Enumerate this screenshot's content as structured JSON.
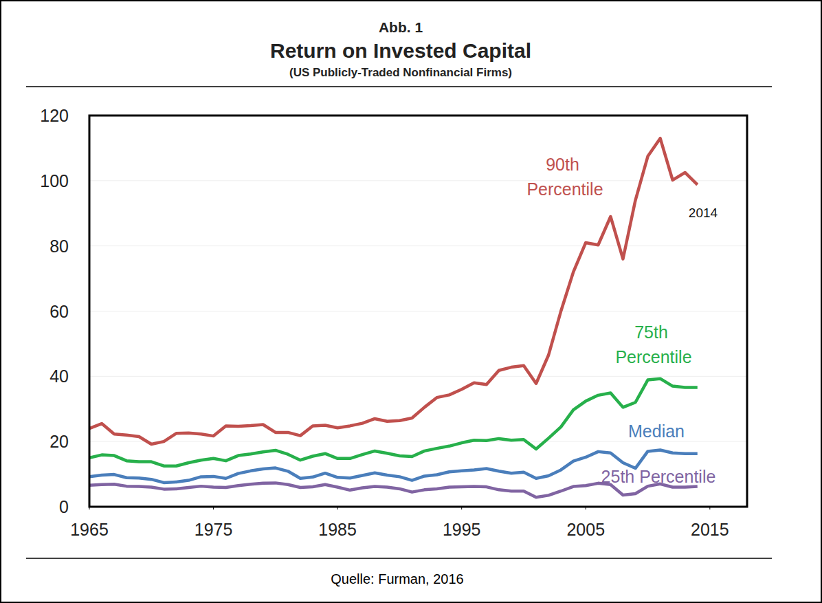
{
  "chart_data": {
    "type": "line",
    "label": "Abb. 1",
    "title": "Return on Invested Capital",
    "subtitle": "(US Publicly-Traded Nonfinancial Firms)",
    "source": "Quelle: Furman, 2016",
    "annotations": [
      {
        "text": "2014"
      }
    ],
    "x": [
      1965,
      1966,
      1967,
      1968,
      1969,
      1970,
      1971,
      1972,
      1973,
      1974,
      1975,
      1976,
      1977,
      1978,
      1979,
      1980,
      1981,
      1982,
      1983,
      1984,
      1985,
      1986,
      1987,
      1988,
      1989,
      1990,
      1991,
      1992,
      1993,
      1994,
      1995,
      1996,
      1997,
      1998,
      1999,
      2000,
      2001,
      2002,
      2003,
      2004,
      2005,
      2006,
      2007,
      2008,
      2009,
      2010,
      2011,
      2012,
      2013,
      2014
    ],
    "xlim": [
      1965,
      2018
    ],
    "xticks": [
      1965,
      1975,
      1985,
      1995,
      2005,
      2015
    ],
    "ylim": [
      0,
      120
    ],
    "yticks": [
      0,
      20,
      40,
      60,
      80,
      100,
      120
    ],
    "grid": true,
    "series": [
      {
        "name": "90th Percentile",
        "color": "#c0504d",
        "values": [
          24,
          25.5,
          22.3,
          22,
          21.5,
          19.2,
          20,
          22.5,
          22.6,
          22.3,
          21.7,
          24.8,
          24.7,
          24.9,
          25.2,
          22.8,
          22.8,
          21.8,
          24.8,
          25,
          24.2,
          24.8,
          25.6,
          27,
          26.2,
          26.4,
          27.2,
          30.5,
          33.5,
          34.3,
          36,
          38,
          37.5,
          41.8,
          42.8,
          43.3,
          37.8,
          46.5,
          60,
          72,
          81,
          80.3,
          89,
          76,
          94,
          107.5,
          113,
          100.2,
          102.5,
          98.8
        ]
      },
      {
        "name": "75th Percentile",
        "color": "#27b04b",
        "values": [
          15,
          15.9,
          15.7,
          14.1,
          13.8,
          13.8,
          12.5,
          12.5,
          13.5,
          14.3,
          14.8,
          14.1,
          15.7,
          16.2,
          16.8,
          17.3,
          16.1,
          14.3,
          15.5,
          16.3,
          14.8,
          14.8,
          16,
          17.1,
          16.4,
          15.6,
          15.4,
          17.1,
          17.9,
          18.6,
          19.6,
          20.4,
          20.3,
          20.9,
          20.4,
          20.6,
          17.7,
          21,
          24.5,
          29.7,
          32.4,
          34.2,
          34.9,
          30.5,
          32,
          38.9,
          39.3,
          37,
          36.6,
          36.6
        ]
      },
      {
        "name": "Median",
        "color": "#4a7ebb",
        "values": [
          9.2,
          9.7,
          9.9,
          8.9,
          8.8,
          8.4,
          7.4,
          7.6,
          8.1,
          9.2,
          9.3,
          8.7,
          10.2,
          11,
          11.6,
          11.9,
          10.9,
          8.7,
          9.1,
          10.3,
          9,
          8.8,
          9.6,
          10.4,
          9.7,
          9.2,
          8.1,
          9.4,
          9.8,
          10.7,
          11,
          11.3,
          11.7,
          10.9,
          10.3,
          10.6,
          8.7,
          9.5,
          11.3,
          14,
          15.2,
          16.9,
          16.5,
          13.5,
          11.8,
          17,
          17.4,
          16.5,
          16.3,
          16.3
        ]
      },
      {
        "name": "25th Percentile",
        "color": "#8064a2",
        "values": [
          6.6,
          6.8,
          6.9,
          6.3,
          6.2,
          6,
          5.4,
          5.5,
          5.9,
          6.3,
          6,
          5.9,
          6.5,
          6.9,
          7.2,
          7.3,
          6.8,
          5.9,
          6.1,
          6.8,
          6,
          5.1,
          5.8,
          6.2,
          6,
          5.5,
          4.5,
          5.2,
          5.5,
          6,
          6.1,
          6.2,
          6.1,
          5.2,
          4.8,
          4.8,
          2.9,
          3.5,
          4.8,
          6.2,
          6.5,
          7.2,
          6.8,
          3.6,
          4,
          6.3,
          7,
          6,
          6,
          6.2
        ]
      }
    ]
  }
}
